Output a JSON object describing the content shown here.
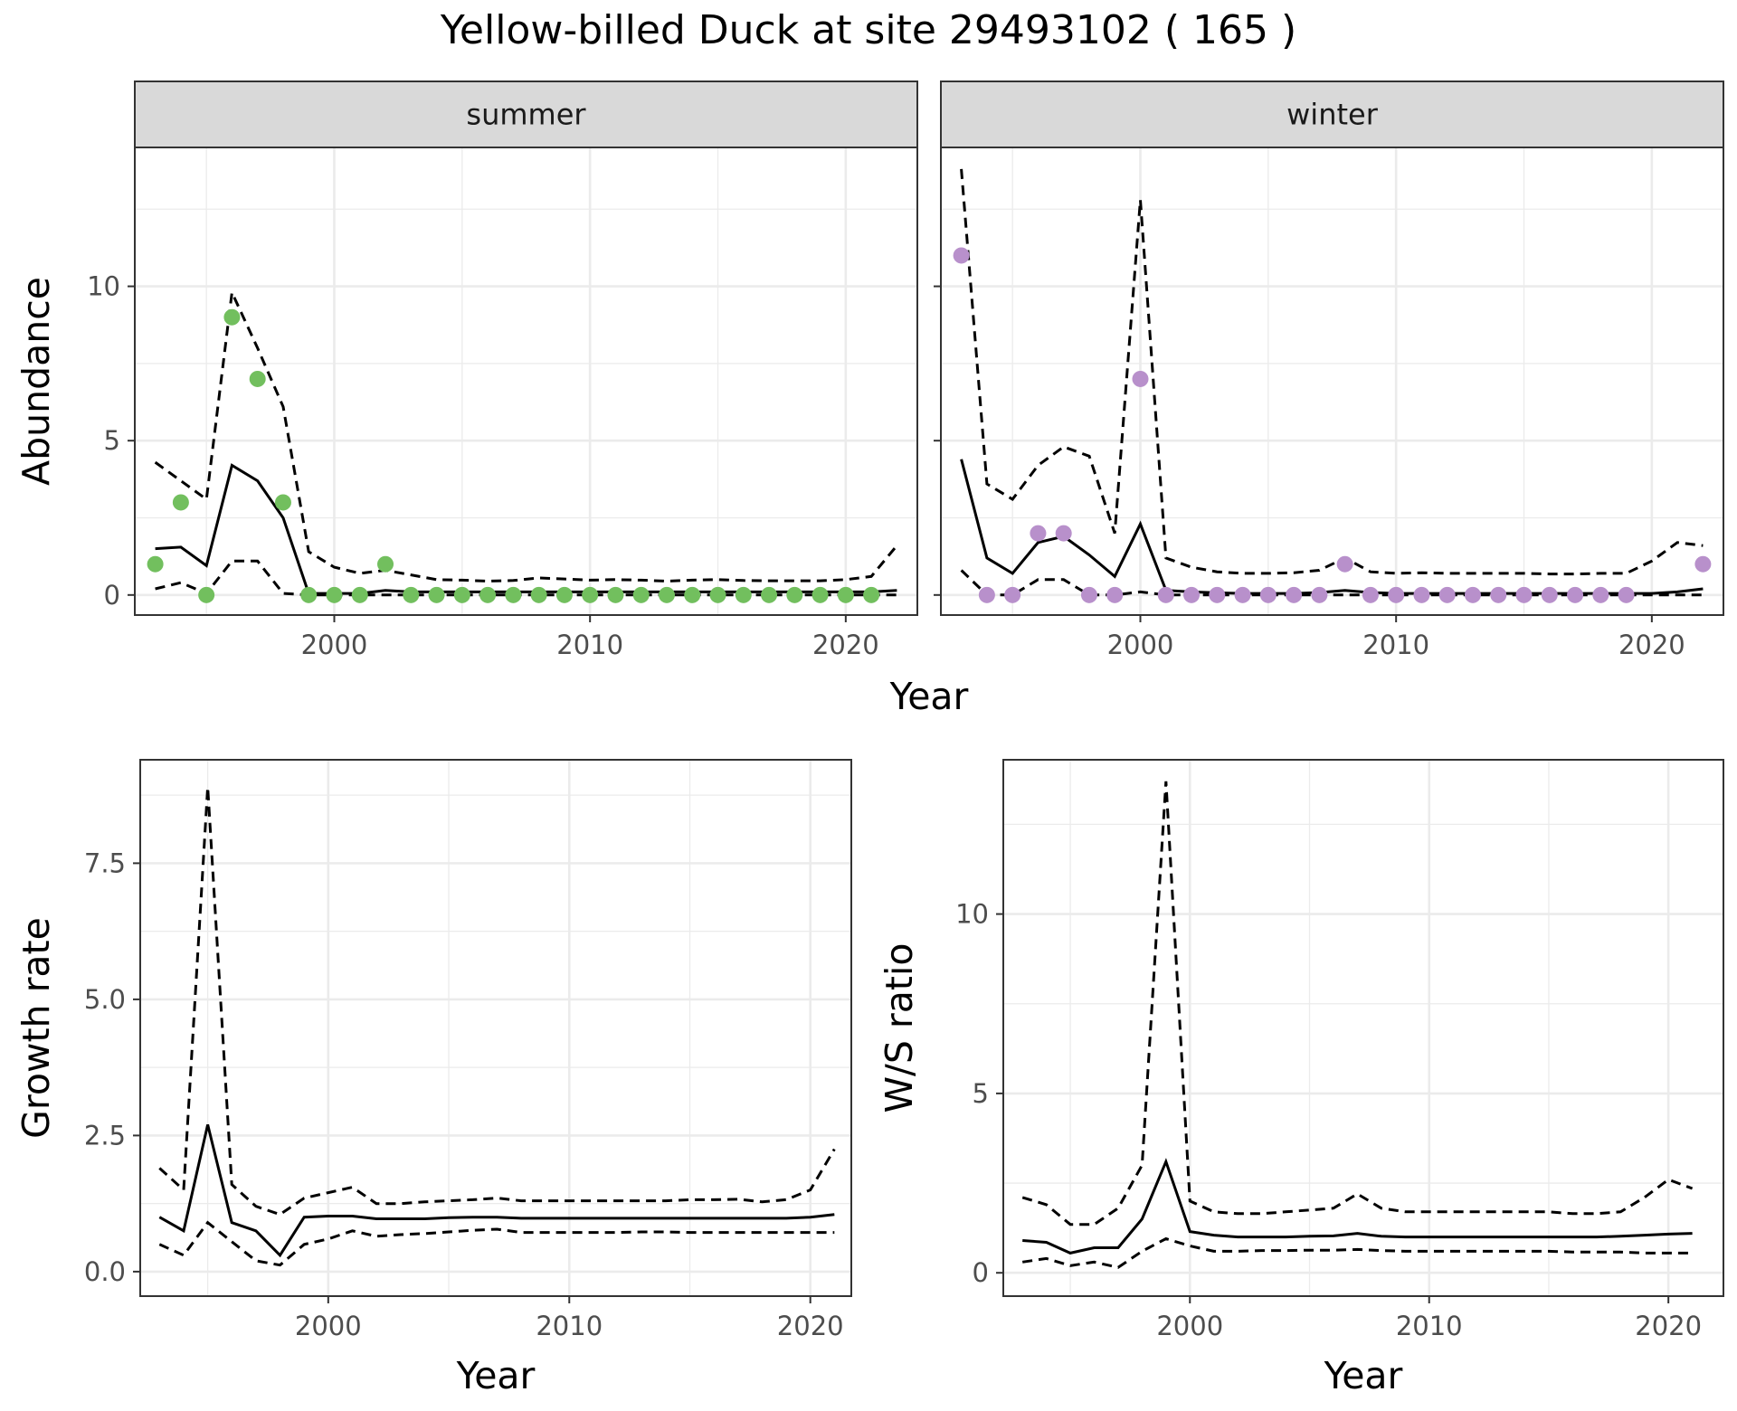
{
  "title": "Yellow-billed Duck at site 29493102 ( 165 )",
  "colors": {
    "summer": "#72BF5E",
    "winter": "#B890CB",
    "line": "#000000",
    "grid": "#EBEBEB",
    "strip": "#D9D9D9"
  },
  "chart_data": [
    {
      "type": "line",
      "panel": "summer",
      "strip": "summer",
      "xlabel": "Year",
      "ylabel": "Abundance",
      "xlim": [
        1992.2,
        2022.8
      ],
      "ylim": [
        -0.65,
        14.5
      ],
      "xticks": [
        2000,
        2010,
        2020
      ],
      "yticks": [
        0,
        5,
        10
      ],
      "point_color": "#72BF5E",
      "x": [
        1993,
        1994,
        1995,
        1996,
        1997,
        1998,
        1999,
        2000,
        2001,
        2002,
        2003,
        2004,
        2005,
        2006,
        2007,
        2008,
        2009,
        2010,
        2011,
        2012,
        2013,
        2014,
        2015,
        2016,
        2017,
        2018,
        2019,
        2020,
        2021,
        2022
      ],
      "points": [
        1,
        3,
        0,
        9,
        7,
        3,
        0,
        0,
        0,
        1,
        0,
        0,
        0,
        0,
        0,
        0,
        0,
        0,
        0,
        0,
        0,
        0,
        0,
        0,
        0,
        0,
        0,
        0,
        0,
        null
      ],
      "mean": [
        1.5,
        1.55,
        0.95,
        4.2,
        3.7,
        2.5,
        0.05,
        0.05,
        0.05,
        0.15,
        0.1,
        0.1,
        0.1,
        0.1,
        0.1,
        0.1,
        0.1,
        0.1,
        0.1,
        0.1,
        0.1,
        0.1,
        0.1,
        0.1,
        0.1,
        0.1,
        0.1,
        0.1,
        0.1,
        0.15
      ],
      "upper": [
        4.3,
        3.7,
        3.1,
        9.8,
        8.0,
        6.1,
        1.4,
        0.9,
        0.7,
        0.8,
        0.65,
        0.5,
        0.48,
        0.45,
        0.47,
        0.55,
        0.52,
        0.48,
        0.5,
        0.48,
        0.45,
        0.48,
        0.5,
        0.47,
        0.46,
        0.46,
        0.46,
        0.5,
        0.6,
        1.6
      ],
      "lower": [
        0.2,
        0.4,
        0.05,
        1.1,
        1.1,
        0.05,
        0.0,
        0.0,
        0.0,
        0.0,
        0.0,
        0.0,
        0.0,
        0.0,
        0.0,
        0.0,
        0.0,
        0.0,
        0.0,
        0.0,
        0.0,
        0.0,
        0.0,
        0.0,
        0.0,
        0.0,
        0.0,
        0.0,
        0.0,
        0.0
      ]
    },
    {
      "type": "line",
      "panel": "winter",
      "strip": "winter",
      "xlabel": "Year",
      "ylabel": "Abundance",
      "xlim": [
        1992.2,
        2022.8
      ],
      "ylim": [
        -0.65,
        14.5
      ],
      "xticks": [
        2000,
        2010,
        2020
      ],
      "yticks": [
        0,
        5,
        10
      ],
      "point_color": "#B890CB",
      "x": [
        1993,
        1994,
        1995,
        1996,
        1997,
        1998,
        1999,
        2000,
        2001,
        2002,
        2003,
        2004,
        2005,
        2006,
        2007,
        2008,
        2009,
        2010,
        2011,
        2012,
        2013,
        2014,
        2015,
        2016,
        2017,
        2018,
        2019,
        2020,
        2021,
        2022
      ],
      "points": [
        11,
        0,
        0,
        2,
        2,
        0,
        0,
        7,
        0,
        0,
        0,
        0,
        0,
        0,
        0,
        1,
        0,
        0,
        0,
        0,
        0,
        0,
        0,
        0,
        0,
        0,
        0,
        null,
        null,
        1
      ],
      "mean": [
        4.4,
        1.2,
        0.7,
        1.7,
        1.9,
        1.3,
        0.6,
        2.3,
        0.15,
        0.1,
        0.07,
        0.05,
        0.05,
        0.05,
        0.08,
        0.15,
        0.08,
        0.05,
        0.05,
        0.05,
        0.05,
        0.05,
        0.05,
        0.05,
        0.05,
        0.05,
        0.05,
        0.05,
        0.1,
        0.2
      ],
      "upper": [
        13.8,
        3.6,
        3.1,
        4.2,
        4.8,
        4.5,
        2.0,
        12.8,
        1.2,
        0.9,
        0.75,
        0.7,
        0.7,
        0.72,
        0.8,
        1.2,
        0.75,
        0.7,
        0.72,
        0.7,
        0.7,
        0.7,
        0.7,
        0.68,
        0.68,
        0.7,
        0.7,
        1.1,
        1.7,
        1.6
      ],
      "lower": [
        0.8,
        0.0,
        0.0,
        0.5,
        0.5,
        0.0,
        0.0,
        0.1,
        0.0,
        0.0,
        0.0,
        0.0,
        0.0,
        0.0,
        0.0,
        0.0,
        0.0,
        0.0,
        0.0,
        0.0,
        0.0,
        0.0,
        0.0,
        0.0,
        0.0,
        0.0,
        0.0,
        0.0,
        0.0,
        0.0
      ]
    },
    {
      "type": "line",
      "panel": "growth",
      "xlabel": "Year",
      "ylabel": "Growth rate",
      "xlim": [
        1992.2,
        2021.7
      ],
      "ylim": [
        -0.45,
        9.4
      ],
      "xticks": [
        2000,
        2010,
        2020
      ],
      "yticks": [
        0.0,
        2.5,
        5.0,
        7.5
      ],
      "ytick_labels": [
        "0.0",
        "2.5",
        "5.0",
        "7.5"
      ],
      "x": [
        1993,
        1994,
        1995,
        1996,
        1997,
        1998,
        1999,
        2000,
        2001,
        2002,
        2003,
        2004,
        2005,
        2006,
        2007,
        2008,
        2009,
        2010,
        2011,
        2012,
        2013,
        2014,
        2015,
        2016,
        2017,
        2018,
        2019,
        2020,
        2021
      ],
      "mean": [
        1.0,
        0.75,
        2.7,
        0.9,
        0.75,
        0.3,
        1.0,
        1.02,
        1.02,
        0.97,
        0.97,
        0.97,
        0.99,
        1.0,
        1.0,
        0.98,
        0.98,
        0.98,
        0.98,
        0.98,
        0.98,
        0.98,
        0.98,
        0.98,
        0.98,
        0.98,
        0.98,
        1.0,
        1.05
      ],
      "upper": [
        1.9,
        1.5,
        8.9,
        1.6,
        1.2,
        1.05,
        1.35,
        1.45,
        1.55,
        1.25,
        1.25,
        1.28,
        1.3,
        1.32,
        1.35,
        1.3,
        1.3,
        1.3,
        1.3,
        1.3,
        1.3,
        1.3,
        1.32,
        1.32,
        1.33,
        1.28,
        1.32,
        1.5,
        2.25
      ],
      "lower": [
        0.5,
        0.3,
        0.9,
        0.55,
        0.2,
        0.12,
        0.5,
        0.6,
        0.75,
        0.65,
        0.68,
        0.7,
        0.73,
        0.76,
        0.78,
        0.72,
        0.72,
        0.72,
        0.72,
        0.72,
        0.73,
        0.73,
        0.72,
        0.72,
        0.72,
        0.72,
        0.72,
        0.72,
        0.72
      ]
    },
    {
      "type": "line",
      "panel": "ratio",
      "xlabel": "Year",
      "ylabel": "W/S ratio",
      "xlim": [
        1992.2,
        2022.3
      ],
      "ylim": [
        -0.65,
        14.3
      ],
      "xticks": [
        2000,
        2010,
        2020
      ],
      "yticks": [
        0,
        5,
        10
      ],
      "x": [
        1993,
        1994,
        1995,
        1996,
        1997,
        1998,
        1999,
        2000,
        2001,
        2002,
        2003,
        2004,
        2005,
        2006,
        2007,
        2008,
        2009,
        2010,
        2011,
        2012,
        2013,
        2014,
        2015,
        2016,
        2017,
        2018,
        2019,
        2020,
        2021
      ],
      "mean": [
        0.9,
        0.85,
        0.55,
        0.7,
        0.7,
        1.5,
        3.1,
        1.15,
        1.05,
        1.0,
        1.0,
        1.0,
        1.02,
        1.03,
        1.1,
        1.02,
        1.0,
        1.0,
        1.0,
        1.0,
        1.0,
        1.0,
        1.0,
        1.0,
        1.0,
        1.02,
        1.05,
        1.08,
        1.1
      ],
      "upper": [
        2.1,
        1.9,
        1.35,
        1.35,
        1.8,
        3.0,
        13.7,
        2.0,
        1.7,
        1.65,
        1.65,
        1.7,
        1.75,
        1.8,
        2.2,
        1.8,
        1.7,
        1.7,
        1.7,
        1.7,
        1.7,
        1.7,
        1.7,
        1.65,
        1.65,
        1.7,
        2.1,
        2.6,
        2.35
      ],
      "lower": [
        0.3,
        0.4,
        0.2,
        0.3,
        0.15,
        0.6,
        0.95,
        0.75,
        0.6,
        0.6,
        0.62,
        0.62,
        0.63,
        0.63,
        0.65,
        0.62,
        0.6,
        0.6,
        0.6,
        0.6,
        0.6,
        0.6,
        0.6,
        0.58,
        0.58,
        0.58,
        0.55,
        0.55,
        0.55
      ]
    }
  ]
}
